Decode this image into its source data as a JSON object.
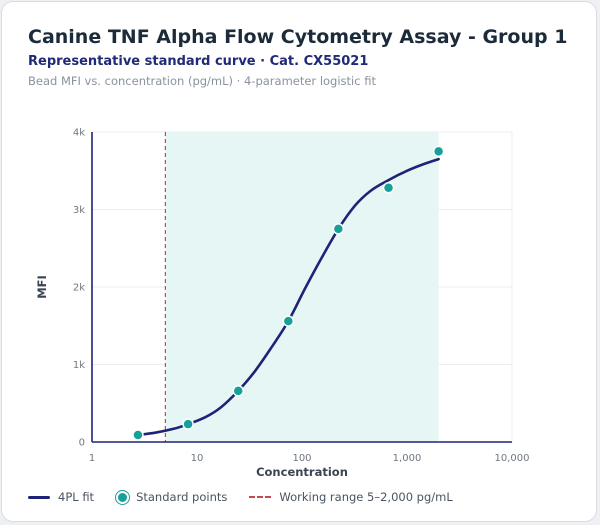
{
  "header": {
    "title": "Canine TNF Alpha Flow Cytometry Assay - Group 1",
    "subtitle": "Representative standard curve · Cat. CX55021",
    "caption": "Bead MFI vs. concentration (pg/mL) · 4-parameter logistic fit"
  },
  "colors": {
    "curve": "#1f2378",
    "points": "#17a09a",
    "range_fill": "#e6f6f4",
    "range_line": "#c9474f",
    "axis": "#1f2378",
    "grid": "#e9ecf0"
  },
  "legend": {
    "fit": "4PL fit",
    "points": "Standard points",
    "range": "Working range 5–2,000 pg/mL"
  },
  "chart_data": {
    "type": "scatter",
    "xlabel": "Concentration",
    "ylabel": "MFI",
    "x_scale": "log",
    "xlim": [
      1,
      10000
    ],
    "ylim": [
      0,
      4000
    ],
    "x_ticks": [
      1,
      10,
      100,
      1000,
      10000
    ],
    "x_tick_labels": [
      "1",
      "10",
      "100",
      "1,000",
      "10,000"
    ],
    "y_ticks": [
      0,
      1000,
      2000,
      3000,
      4000
    ],
    "y_tick_labels": [
      "0",
      "1k",
      "2k",
      "3k",
      "4k"
    ],
    "grid": true,
    "legend_position": "bottom",
    "working_range": [
      5,
      2000
    ],
    "series": [
      {
        "name": "Standard points",
        "type": "scatter",
        "x": [
          2.74,
          8.23,
          24.7,
          74.1,
          222,
          667,
          2000
        ],
        "y": [
          90,
          230,
          660,
          1560,
          2750,
          3280,
          3750
        ]
      },
      {
        "name": "4PL fit",
        "type": "line",
        "x": [
          2.74,
          4,
          6,
          8.23,
          12,
          17,
          24.7,
          35,
          50,
          74.1,
          105,
          150,
          222,
          320,
          450,
          667,
          1000,
          1400,
          2000
        ],
        "y": [
          90,
          120,
          170,
          230,
          320,
          450,
          660,
          900,
          1200,
          1560,
          1960,
          2350,
          2750,
          3050,
          3240,
          3380,
          3500,
          3580,
          3650
        ]
      }
    ]
  }
}
